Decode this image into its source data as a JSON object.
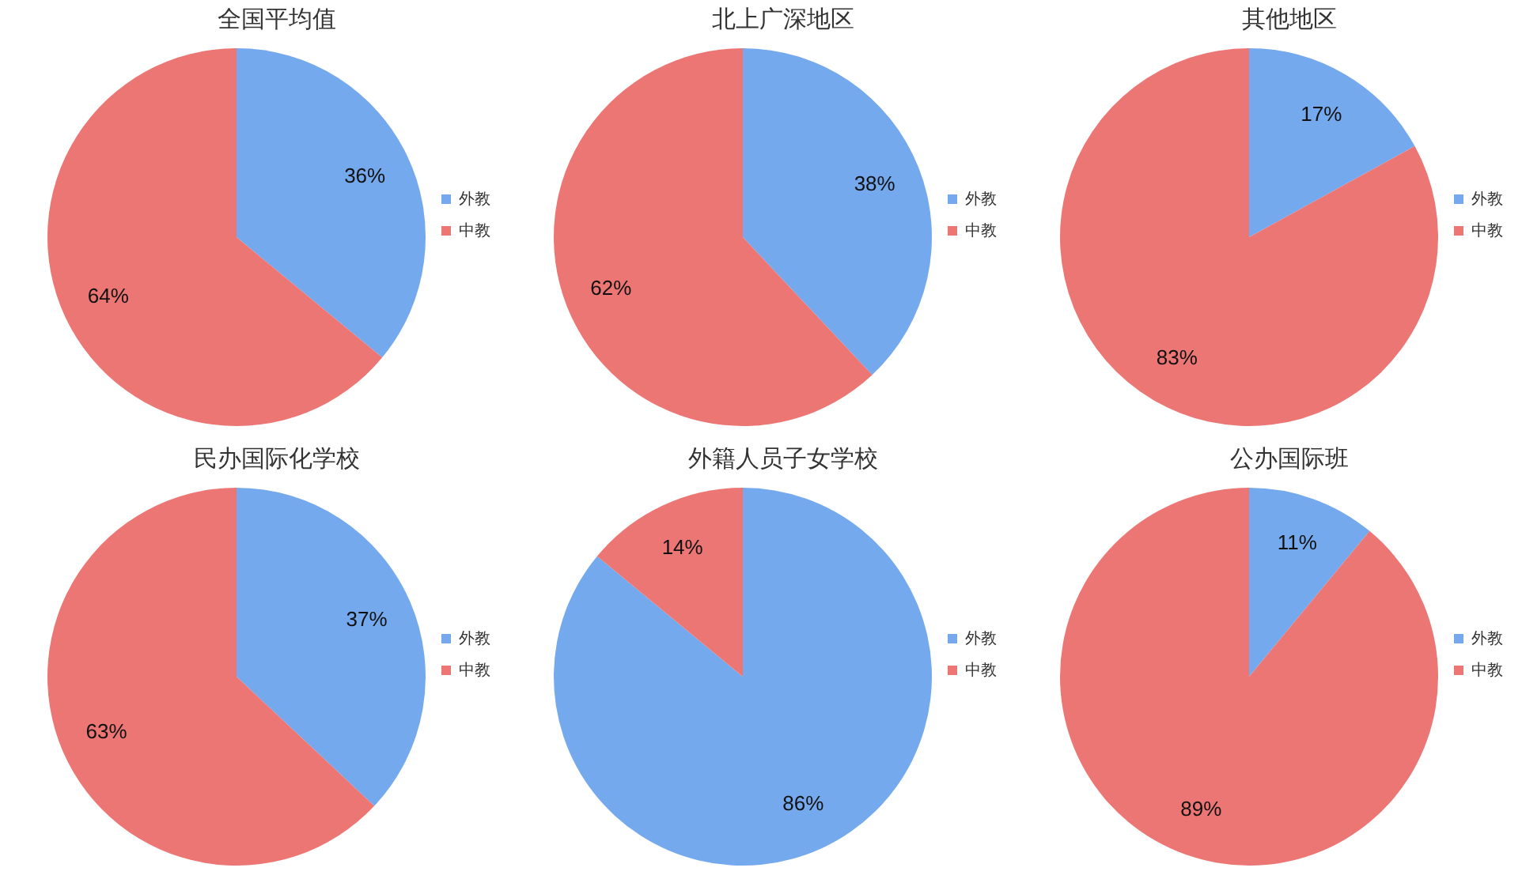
{
  "chart_data": [
    {
      "type": "pie",
      "title": "全国平均值",
      "categories": [
        "外教",
        "中教"
      ],
      "values": [
        36,
        64
      ],
      "value_labels": [
        "36%",
        "64%"
      ],
      "colors": [
        "#74a9ee",
        "#ec7674"
      ],
      "legend": "right"
    },
    {
      "type": "pie",
      "title": "北上广深地区",
      "categories": [
        "外教",
        "中教"
      ],
      "values": [
        38,
        62
      ],
      "value_labels": [
        "38%",
        "62%"
      ],
      "colors": [
        "#74a9ee",
        "#ec7674"
      ],
      "legend": "right"
    },
    {
      "type": "pie",
      "title": "其他地区",
      "categories": [
        "外教",
        "中教"
      ],
      "values": [
        17,
        83
      ],
      "value_labels": [
        "17%",
        "83%"
      ],
      "colors": [
        "#74a9ee",
        "#ec7674"
      ],
      "legend": "right"
    },
    {
      "type": "pie",
      "title": "民办国际化学校",
      "categories": [
        "外教",
        "中教"
      ],
      "values": [
        37,
        63
      ],
      "value_labels": [
        "37%",
        "63%"
      ],
      "colors": [
        "#74a9ee",
        "#ec7674"
      ],
      "legend": "right"
    },
    {
      "type": "pie",
      "title": "外籍人员子女学校",
      "categories": [
        "外教",
        "中教"
      ],
      "values": [
        86,
        14
      ],
      "value_labels": [
        "86%",
        "14%"
      ],
      "colors": [
        "#74a9ee",
        "#ec7674"
      ],
      "legend": "right"
    },
    {
      "type": "pie",
      "title": "公办国际班",
      "categories": [
        "外教",
        "中教"
      ],
      "values": [
        11,
        89
      ],
      "value_labels": [
        "11%",
        "89%"
      ],
      "colors": [
        "#74a9ee",
        "#ec7674"
      ],
      "legend": "right"
    }
  ]
}
